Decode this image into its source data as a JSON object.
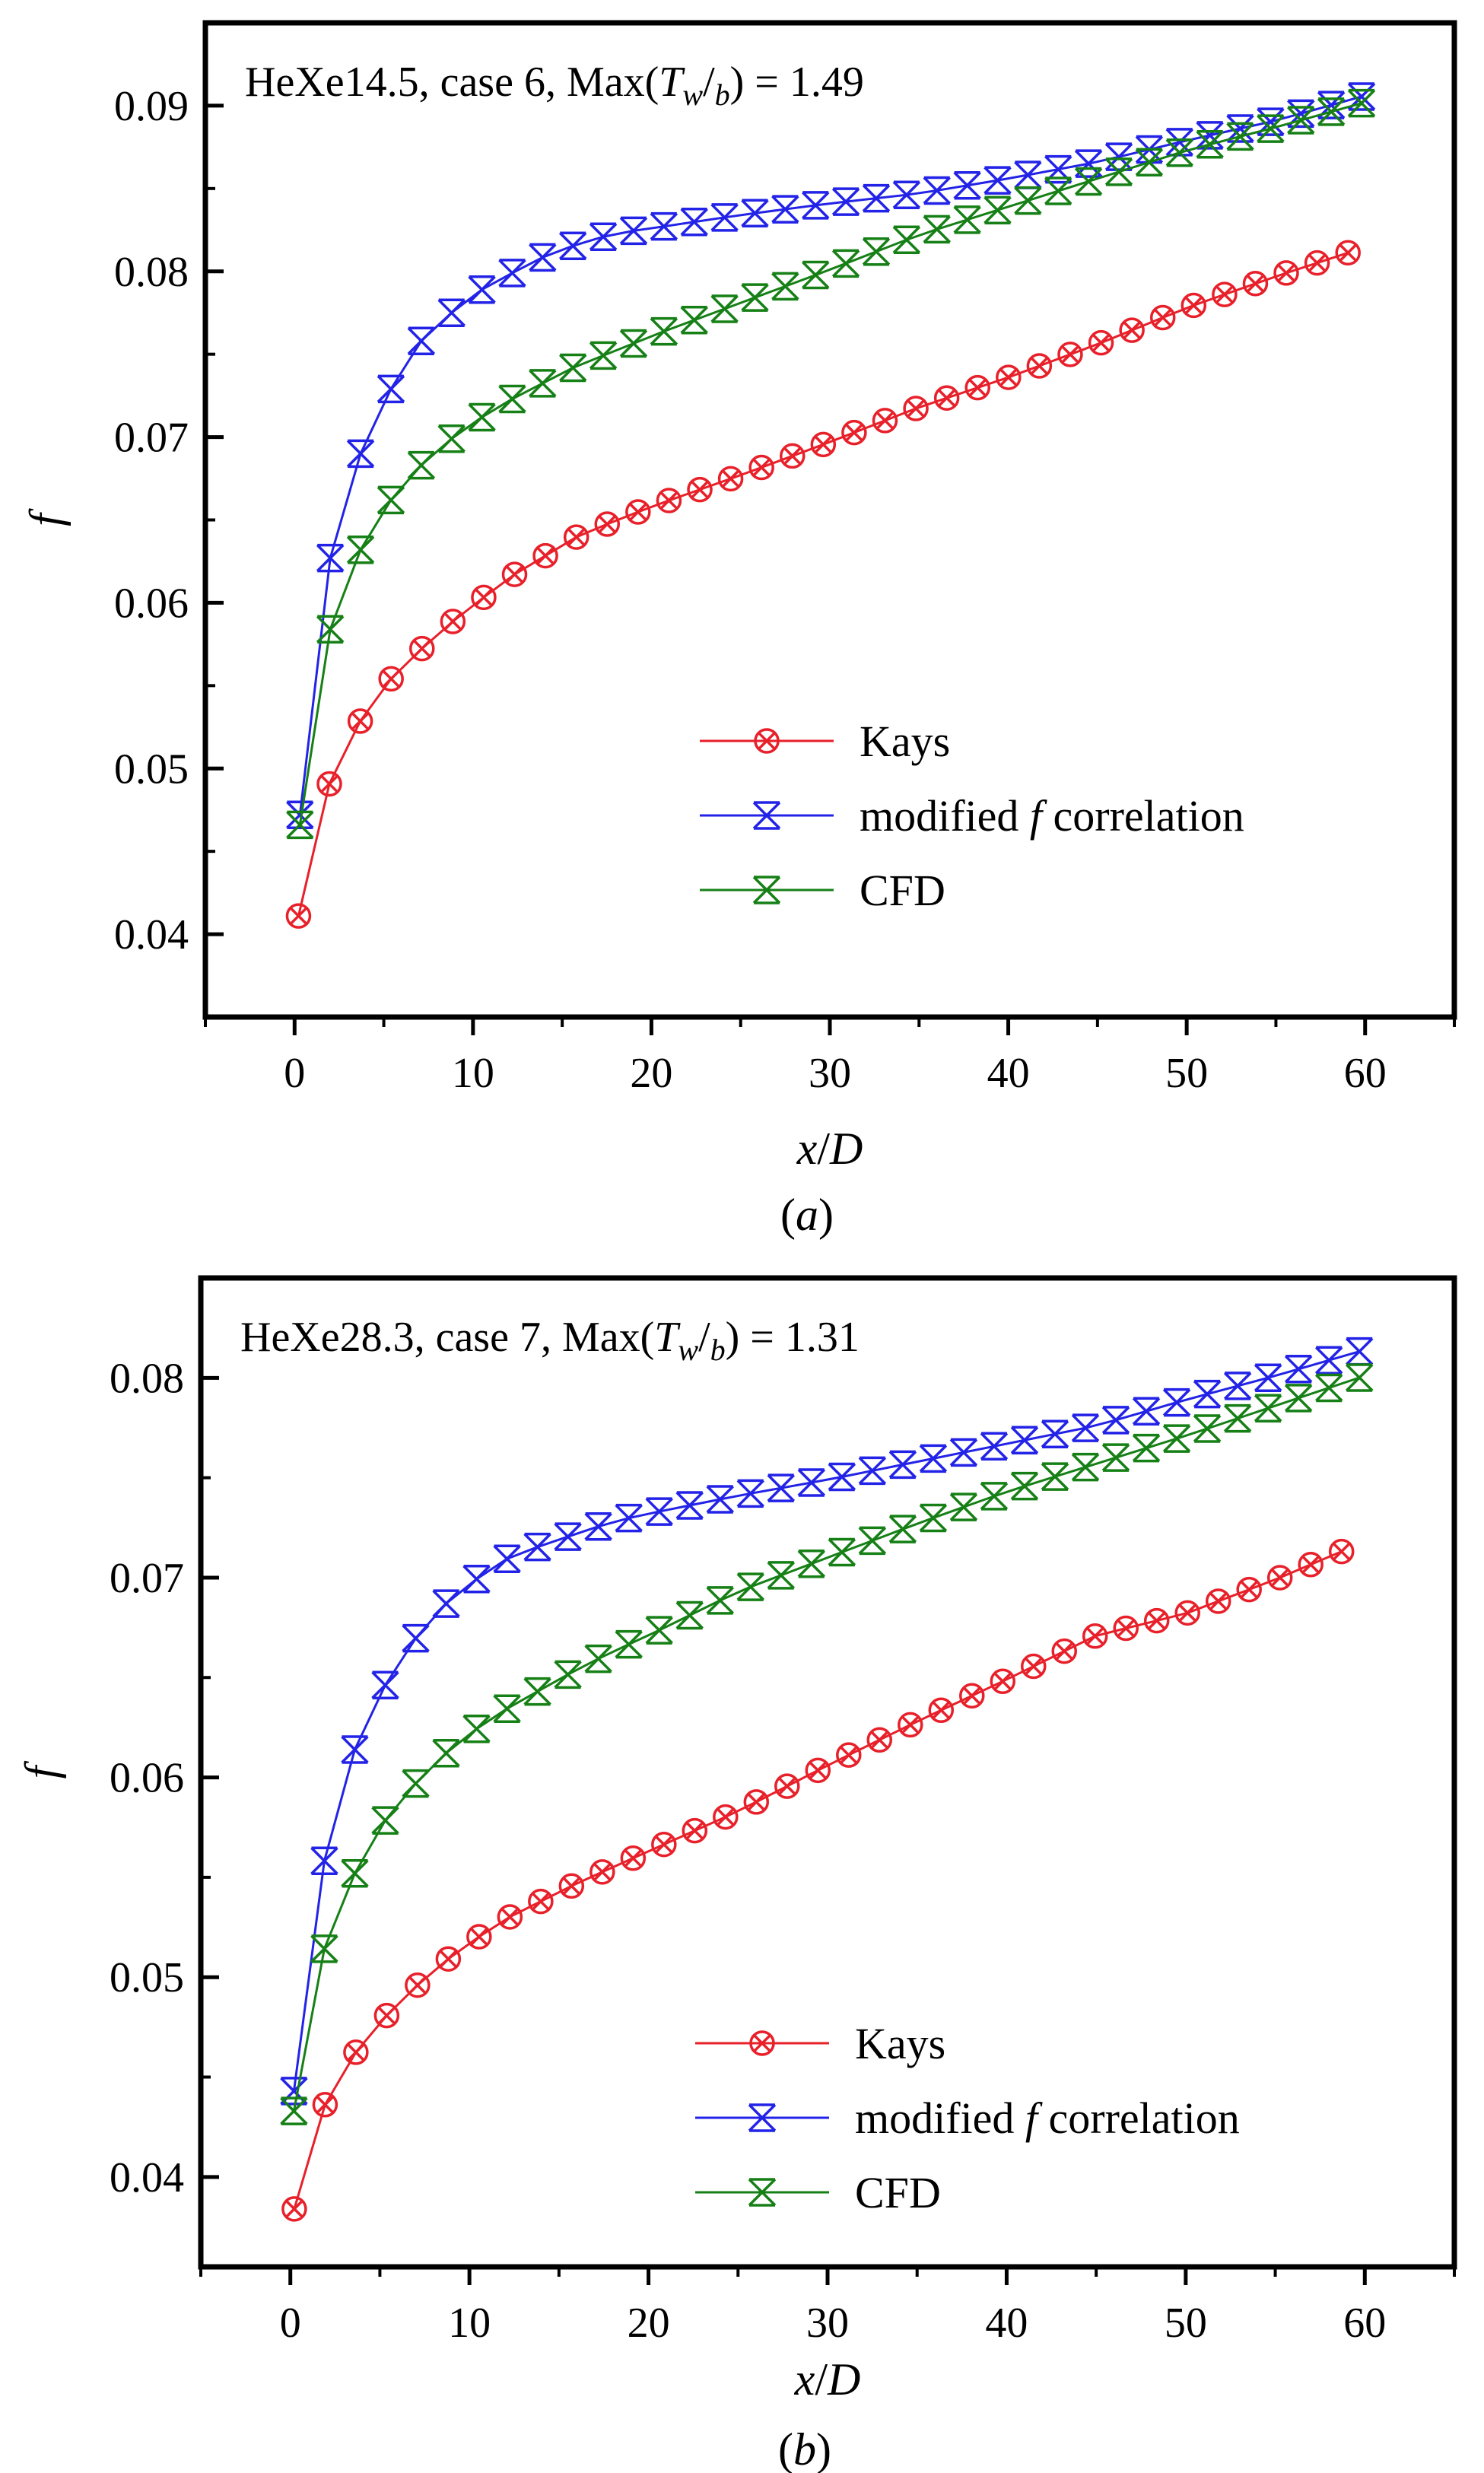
{
  "chart_data": [
    {
      "type": "line",
      "panel": "a",
      "caption_open": "(",
      "caption_letter": "a",
      "caption_close": ")",
      "title_prefix": "HeXe14.5, case 6, Max(",
      "title_T": "T",
      "title_w": "w",
      "title_slash": "/",
      "title_b": "b",
      "title_suffix": ") = 1.49",
      "xlabel_x": "x",
      "xlabel_slash": "/",
      "xlabel_D": "D",
      "ylabel": "f",
      "xlim": [
        -5,
        65
      ],
      "ylim": [
        0.035,
        0.095
      ],
      "xticks": [
        0,
        10,
        20,
        30,
        40,
        50,
        60
      ],
      "xtick_labels": [
        "0",
        "10",
        "20",
        "30",
        "40",
        "50",
        "60"
      ],
      "yticks": [
        0.04,
        0.05,
        0.06,
        0.07,
        0.08,
        0.09
      ],
      "ytick_labels": [
        "0.04",
        "0.05",
        "0.06",
        "0.07",
        "0.08",
        "0.09"
      ],
      "legend_position": "lower-right",
      "series": [
        {
          "name": "Kays",
          "legend_text": "Kays",
          "color": "#e8202a",
          "marker": "circle-x",
          "x0": 0.22,
          "dx": 1.73,
          "n": 35,
          "anchors": [
            [
              0.22,
              0.0411
            ],
            [
              2,
              0.0493
            ],
            [
              3.7,
              0.0529
            ],
            [
              5.4,
              0.0554
            ],
            [
              7.2,
              0.0573
            ],
            [
              8.9,
              0.0589
            ],
            [
              12,
              0.0615
            ],
            [
              16,
              0.0641
            ],
            [
              20,
              0.0658
            ],
            [
              25,
              0.0677
            ],
            [
              30,
              0.0697
            ],
            [
              35,
              0.0718
            ],
            [
              40,
              0.0736
            ],
            [
              45,
              0.0756
            ],
            [
              50,
              0.0778
            ],
            [
              55,
              0.0797
            ],
            [
              59,
              0.0811
            ],
            [
              60.2,
              0.0818
            ]
          ]
        },
        {
          "name": "modified f correlation",
          "legend_italic": "f",
          "legend_pre": "modified ",
          "legend_post": " correlation",
          "color": "#2323e8",
          "marker": "x-bar",
          "x0": 0.3,
          "dx": 1.7,
          "n": 36,
          "anchors": [
            [
              0.3,
              0.0472
            ],
            [
              2,
              0.0627
            ],
            [
              3.7,
              0.069
            ],
            [
              5.4,
              0.0729
            ],
            [
              7.1,
              0.0758
            ],
            [
              8.8,
              0.0775
            ],
            [
              10.5,
              0.0789
            ],
            [
              12.2,
              0.0799
            ],
            [
              14,
              0.0809
            ],
            [
              16,
              0.0817
            ],
            [
              18,
              0.0823
            ],
            [
              20,
              0.0826
            ],
            [
              25,
              0.0834
            ],
            [
              30,
              0.0841
            ],
            [
              35,
              0.0847
            ],
            [
              40,
              0.0856
            ],
            [
              45,
              0.0866
            ],
            [
              50,
              0.0879
            ],
            [
              55,
              0.0891
            ],
            [
              60.3,
              0.0907
            ]
          ]
        },
        {
          "name": "CFD",
          "legend_text": "CFD",
          "color": "#168016",
          "marker": "x-bar",
          "x0": 0.3,
          "dx": 1.7,
          "n": 36,
          "anchors": [
            [
              0.3,
              0.0466
            ],
            [
              2,
              0.0584
            ],
            [
              3.7,
              0.0632
            ],
            [
              5.4,
              0.0662
            ],
            [
              7.1,
              0.0683
            ],
            [
              8.8,
              0.0699
            ],
            [
              10.5,
              0.0712
            ],
            [
              12.2,
              0.0723
            ],
            [
              14,
              0.0733
            ],
            [
              16,
              0.0744
            ],
            [
              18,
              0.0752
            ],
            [
              20,
              0.0761
            ],
            [
              25,
              0.0781
            ],
            [
              30,
              0.0801
            ],
            [
              35,
              0.0822
            ],
            [
              40,
              0.0839
            ],
            [
              45,
              0.0856
            ],
            [
              50,
              0.0873
            ],
            [
              55,
              0.0887
            ],
            [
              60.3,
              0.0903
            ]
          ]
        }
      ]
    },
    {
      "type": "line",
      "panel": "b",
      "caption_open": "(",
      "caption_letter": "b",
      "caption_close": ")",
      "title_prefix": "HeXe28.3, case 7, Max(",
      "title_T": "T",
      "title_w": "w",
      "title_slash": "/",
      "title_b": "b",
      "title_suffix": ") = 1.31",
      "xlabel_x": "x",
      "xlabel_slash": "/",
      "xlabel_D": "D",
      "ylabel": "f",
      "xlim": [
        -5,
        65
      ],
      "ylim": [
        0.0355,
        0.085
      ],
      "xticks": [
        0,
        10,
        20,
        30,
        40,
        50,
        60
      ],
      "xtick_labels": [
        "0",
        "10",
        "20",
        "30",
        "40",
        "50",
        "60"
      ],
      "yticks": [
        0.04,
        0.05,
        0.06,
        0.07,
        0.08
      ],
      "ytick_labels": [
        "0.04",
        "0.05",
        "0.06",
        "0.07",
        "0.08"
      ],
      "legend_position": "lower-right",
      "series": [
        {
          "name": "Kays",
          "legend_text": "Kays",
          "color": "#e8202a",
          "marker": "circle-x",
          "x0": 0.22,
          "dx": 1.72,
          "n": 35,
          "anchors": [
            [
              0.22,
              0.0384
            ],
            [
              2,
              0.0438
            ],
            [
              3.7,
              0.0463
            ],
            [
              5.4,
              0.0481
            ],
            [
              7.1,
              0.0496
            ],
            [
              8.8,
              0.0509
            ],
            [
              10.5,
              0.052
            ],
            [
              12,
              0.0529
            ],
            [
              16,
              0.0547
            ],
            [
              20,
              0.0563
            ],
            [
              25,
              0.0583
            ],
            [
              30,
              0.0606
            ],
            [
              35,
              0.0628
            ],
            [
              40,
              0.0649
            ],
            [
              45,
              0.0671
            ],
            [
              50,
              0.0682
            ],
            [
              55,
              0.0699
            ],
            [
              60,
              0.0718
            ]
          ]
        },
        {
          "name": "modified f correlation",
          "legend_italic": "f",
          "legend_pre": "modified ",
          "legend_post": " correlation",
          "color": "#2323e8",
          "marker": "x-bar",
          "x0": 0.2,
          "dx": 1.7,
          "n": 36,
          "anchors": [
            [
              0.2,
              0.0443
            ],
            [
              2,
              0.0565
            ],
            [
              3.7,
              0.0617
            ],
            [
              5.4,
              0.0648
            ],
            [
              7.1,
              0.0671
            ],
            [
              8.8,
              0.0688
            ],
            [
              10.5,
              0.07
            ],
            [
              12.2,
              0.071
            ],
            [
              14,
              0.0716
            ],
            [
              16,
              0.0722
            ],
            [
              18,
              0.0728
            ],
            [
              20,
              0.0732
            ],
            [
              25,
              0.0741
            ],
            [
              30,
              0.0749
            ],
            [
              35,
              0.0758
            ],
            [
              40,
              0.0767
            ],
            [
              45,
              0.0776
            ],
            [
              50,
              0.0789
            ],
            [
              55,
              0.0801
            ],
            [
              60,
              0.0814
            ]
          ]
        },
        {
          "name": "CFD",
          "legend_text": "CFD",
          "color": "#168016",
          "marker": "x-bar",
          "x0": 0.2,
          "dx": 1.7,
          "n": 36,
          "anchors": [
            [
              0.2,
              0.0433
            ],
            [
              2,
              0.0519
            ],
            [
              3.7,
              0.0554
            ],
            [
              5.4,
              0.058
            ],
            [
              7.1,
              0.0598
            ],
            [
              8.8,
              0.0613
            ],
            [
              10.5,
              0.0625
            ],
            [
              12.2,
              0.0635
            ],
            [
              14,
              0.0644
            ],
            [
              16,
              0.0654
            ],
            [
              18,
              0.0663
            ],
            [
              20,
              0.0671
            ],
            [
              25,
              0.0693
            ],
            [
              30,
              0.071
            ],
            [
              35,
              0.0727
            ],
            [
              40,
              0.0743
            ],
            [
              45,
              0.0757
            ],
            [
              50,
              0.0771
            ],
            [
              55,
              0.0786
            ],
            [
              60,
              0.0801
            ]
          ]
        }
      ]
    }
  ]
}
